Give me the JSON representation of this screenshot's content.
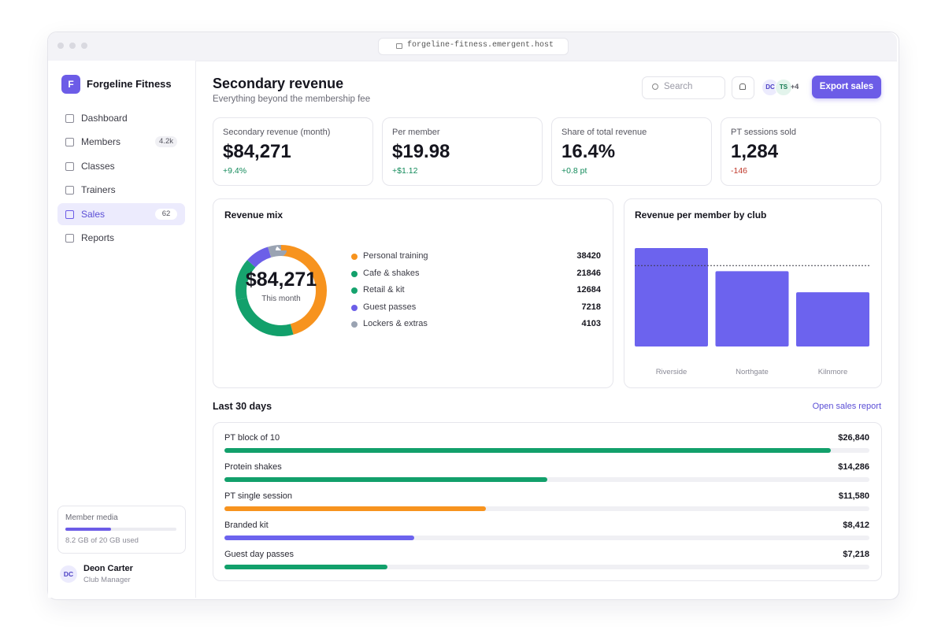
{
  "browser": {
    "url": "forgeline-fitness.emergent.host"
  },
  "sidebar": {
    "brand_initial": "F",
    "brand": "Forgeline Fitness",
    "nav": [
      {
        "label": "Dashboard"
      },
      {
        "label": "Members",
        "badge": "4.2k"
      },
      {
        "label": "Classes"
      },
      {
        "label": "Trainers"
      },
      {
        "label": "Sales",
        "badge": "62",
        "active": true
      },
      {
        "label": "Reports"
      }
    ],
    "storage": {
      "title": "Member media",
      "value": 8.2,
      "max": 20,
      "caption": "8.2 GB of 20 GB used"
    },
    "user": {
      "initials": "DC",
      "name": "Deon Carter",
      "role": "Club Manager"
    }
  },
  "header": {
    "title": "Secondary revenue",
    "subtitle": "Everything beyond the membership fee",
    "search_placeholder": "Search",
    "avatars": [
      "DC",
      "TS"
    ],
    "more_avatars": "+4",
    "button": "Export sales"
  },
  "kpis": [
    {
      "label": "Secondary revenue (month)",
      "value": "$84,271",
      "delta": "+9.4%",
      "trend": "up"
    },
    {
      "label": "Per member",
      "value": "$19.98",
      "delta": "+$1.12",
      "trend": "up"
    },
    {
      "label": "Share of total revenue",
      "value": "16.4%",
      "delta": "+0.8 pt",
      "trend": "up"
    },
    {
      "label": "PT sessions sold",
      "value": "1,284",
      "delta": "-146",
      "trend": "down"
    }
  ],
  "revenue_mix": {
    "type": "donut",
    "title": "Revenue mix",
    "center_value": "$84,271",
    "center_label": "This month",
    "categories": [
      "Personal training",
      "Cafe & shakes",
      "Retail & kit",
      "Guest passes",
      "Lockers & extras"
    ],
    "values": [
      38420,
      21846,
      12684,
      7218,
      4103
    ],
    "colors": [
      "#f7931e",
      "#12a06b",
      "#16a36e",
      "#6c5fe8",
      "#9aa3b2"
    ]
  },
  "club_chart": {
    "type": "bar",
    "title": "Revenue per member by club",
    "categories": [
      "Riverside",
      "Northgate",
      "Kilnmore"
    ],
    "values": [
      24.3,
      18.6,
      13.4
    ],
    "reference_line": 19.98,
    "color": "#6c63ee"
  },
  "last_30_days": {
    "title": "Last 30 days",
    "link": "Open sales report",
    "items": [
      {
        "name": "PT block of 10",
        "value": 26840,
        "value_label": "$26,840",
        "color": "#12a06b"
      },
      {
        "name": "Protein shakes",
        "value": 14286,
        "value_label": "$14,286",
        "color": "#12a06b"
      },
      {
        "name": "PT single session",
        "value": 11580,
        "value_label": "$11,580",
        "color": "#f7931e"
      },
      {
        "name": "Branded kit",
        "value": 8412,
        "value_label": "$8,412",
        "color": "#6c63ee"
      },
      {
        "name": "Guest day passes",
        "value": 7218,
        "value_label": "$7,218",
        "color": "#12a06b"
      }
    ]
  }
}
